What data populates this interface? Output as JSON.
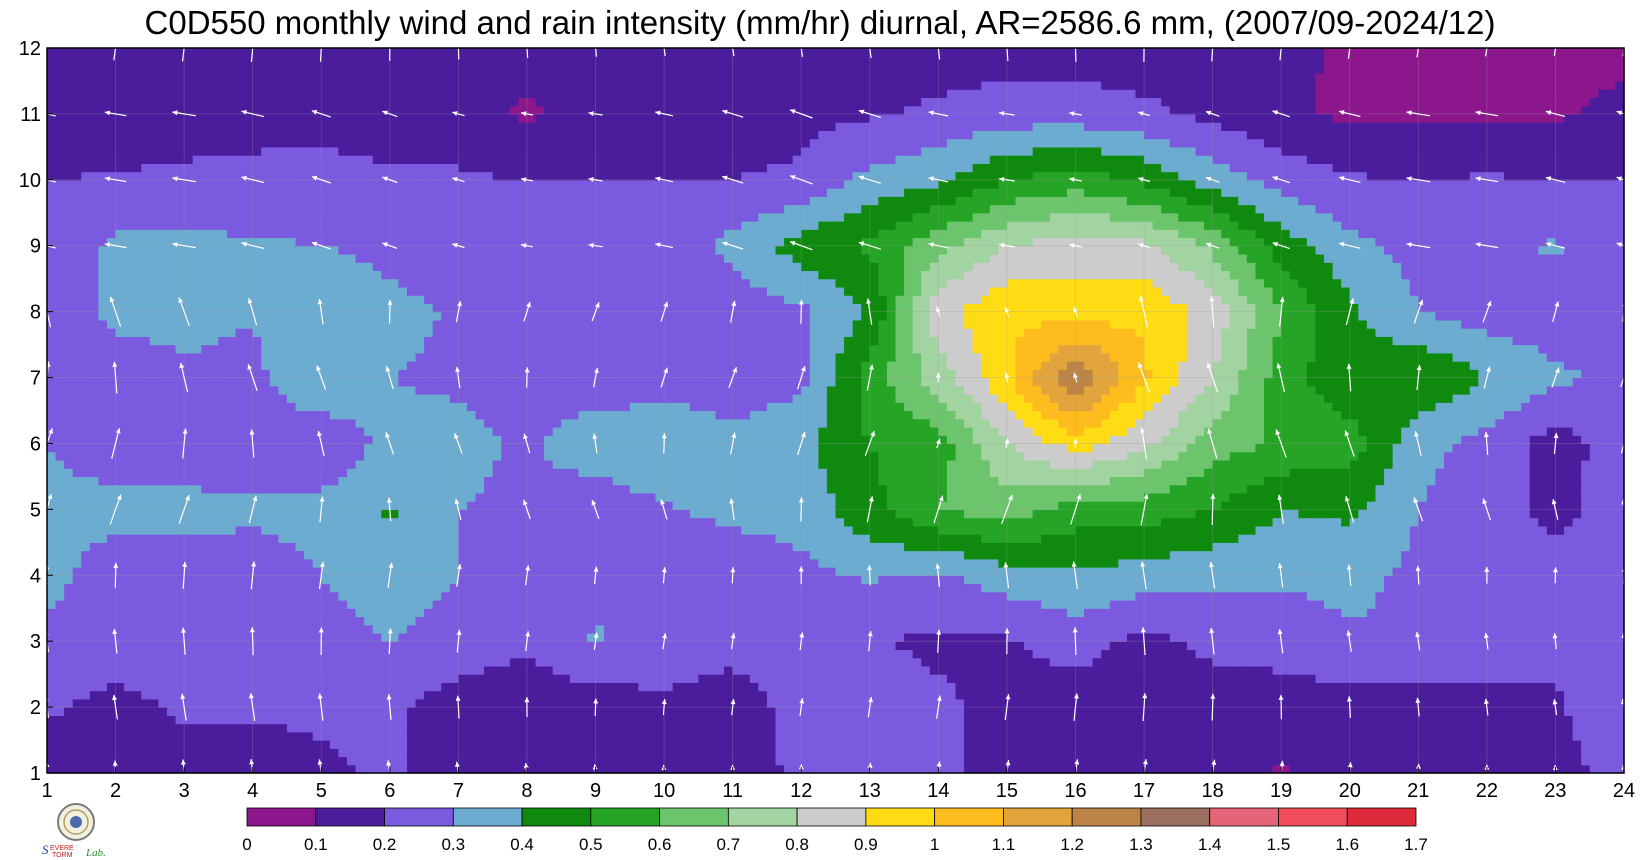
{
  "chart_data": {
    "type": "heatmap",
    "title": "C0D550 monthly wind and rain intensity (mm/hr) diurnal, AR=2586.6 mm, (2007/09-2024/12)",
    "x_ticks": [
      "1",
      "2",
      "3",
      "4",
      "5",
      "6",
      "7",
      "8",
      "9",
      "10",
      "11",
      "12",
      "13",
      "14",
      "15",
      "16",
      "17",
      "18",
      "19",
      "20",
      "21",
      "22",
      "23",
      "24"
    ],
    "y_ticks": [
      "1",
      "2",
      "3",
      "4",
      "5",
      "6",
      "7",
      "8",
      "9",
      "10",
      "11",
      "12"
    ],
    "xlim": [
      1,
      24
    ],
    "ylim": [
      1,
      12
    ],
    "grid": true,
    "colorbar": {
      "labels": [
        "0",
        "0.1",
        "0.2",
        "0.3",
        "0.4",
        "0.5",
        "0.6",
        "0.7",
        "0.8",
        "0.9",
        "1",
        "1.1",
        "1.2",
        "1.3",
        "1.4",
        "1.5",
        "1.6",
        "1.7"
      ],
      "colors": [
        "#8c168c",
        "#4b1c9c",
        "#7b5ae0",
        "#6cacd0",
        "#0f8a0f",
        "#25a425",
        "#6cc46c",
        "#a2d4a2",
        "#cccccc",
        "#ffdc14",
        "#ffbc1e",
        "#e2a43c",
        "#bc8446",
        "#9c7060",
        "#e46478",
        "#f04c5c",
        "#dc2a3a"
      ]
    },
    "wind_vectors": "arrows on every integer grid point (hour 1–24, month 1–12)",
    "rain_intensity_grid": [
      [
        0.12,
        0.15,
        0.14,
        0.13,
        0.18,
        0.22,
        0.12,
        0.14,
        0.18,
        0.18,
        0.15,
        0.22,
        0.22,
        0.22,
        0.16,
        0.16,
        0.16,
        0.16,
        0.09,
        0.16,
        0.17,
        0.18,
        0.18,
        0.22
      ],
      [
        0.22,
        0.16,
        0.22,
        0.22,
        0.22,
        0.22,
        0.15,
        0.13,
        0.14,
        0.18,
        0.14,
        0.24,
        0.26,
        0.22,
        0.16,
        0.15,
        0.16,
        0.16,
        0.15,
        0.15,
        0.15,
        0.16,
        0.19,
        0.25
      ],
      [
        0.27,
        0.28,
        0.26,
        0.26,
        0.25,
        0.3,
        0.26,
        0.22,
        0.31,
        0.26,
        0.24,
        0.28,
        0.21,
        0.18,
        0.19,
        0.24,
        0.17,
        0.22,
        0.24,
        0.29,
        0.3,
        0.26,
        0.22,
        0.23
      ],
      [
        0.33,
        0.25,
        0.25,
        0.25,
        0.3,
        0.36,
        0.3,
        0.22,
        0.28,
        0.26,
        0.25,
        0.28,
        0.31,
        0.28,
        0.35,
        0.39,
        0.35,
        0.32,
        0.32,
        0.32,
        0.28,
        0.25,
        0.24,
        0.22
      ],
      [
        0.32,
        0.33,
        0.33,
        0.32,
        0.33,
        0.41,
        0.3,
        0.27,
        0.22,
        0.29,
        0.32,
        0.33,
        0.47,
        0.6,
        0.65,
        0.55,
        0.55,
        0.5,
        0.4,
        0.42,
        0.3,
        0.24,
        0.17,
        0.25
      ],
      [
        0.3,
        0.25,
        0.24,
        0.24,
        0.22,
        0.33,
        0.34,
        0.28,
        0.38,
        0.4,
        0.34,
        0.38,
        0.5,
        0.55,
        0.8,
        0.95,
        0.82,
        0.65,
        0.58,
        0.55,
        0.33,
        0.27,
        0.15,
        0.26
      ],
      [
        0.28,
        0.26,
        0.29,
        0.27,
        0.4,
        0.3,
        0.28,
        0.24,
        0.22,
        0.24,
        0.23,
        0.27,
        0.55,
        0.75,
        0.98,
        1.3,
        1.02,
        0.8,
        0.55,
        0.42,
        0.5,
        0.4,
        0.32,
        0.27
      ],
      [
        0.25,
        0.32,
        0.32,
        0.31,
        0.4,
        0.33,
        0.29,
        0.25,
        0.23,
        0.22,
        0.24,
        0.28,
        0.4,
        0.87,
        0.98,
        0.95,
        0.98,
        0.86,
        0.6,
        0.42,
        0.3,
        0.25,
        0.24,
        0.26
      ],
      [
        0.22,
        0.32,
        0.33,
        0.31,
        0.3,
        0.27,
        0.24,
        0.21,
        0.29,
        0.22,
        0.33,
        0.45,
        0.52,
        0.67,
        0.8,
        0.85,
        0.83,
        0.68,
        0.45,
        0.33,
        0.27,
        0.28,
        0.31,
        0.25
      ],
      [
        0.2,
        0.21,
        0.22,
        0.23,
        0.24,
        0.21,
        0.21,
        0.2,
        0.2,
        0.2,
        0.2,
        0.21,
        0.33,
        0.38,
        0.5,
        0.55,
        0.48,
        0.35,
        0.26,
        0.21,
        0.2,
        0.21,
        0.2,
        0.2
      ],
      [
        0.12,
        0.13,
        0.15,
        0.16,
        0.16,
        0.16,
        0.16,
        0.08,
        0.16,
        0.16,
        0.17,
        0.18,
        0.19,
        0.22,
        0.25,
        0.25,
        0.22,
        0.18,
        0.12,
        0.08,
        0.08,
        0.08,
        0.09,
        0.12
      ],
      [
        0.13,
        0.14,
        0.15,
        0.15,
        0.15,
        0.15,
        0.14,
        0.14,
        0.14,
        0.15,
        0.15,
        0.15,
        0.15,
        0.15,
        0.15,
        0.15,
        0.15,
        0.15,
        0.13,
        0.08,
        0.07,
        0.07,
        0.07,
        0.08
      ]
    ]
  }
}
